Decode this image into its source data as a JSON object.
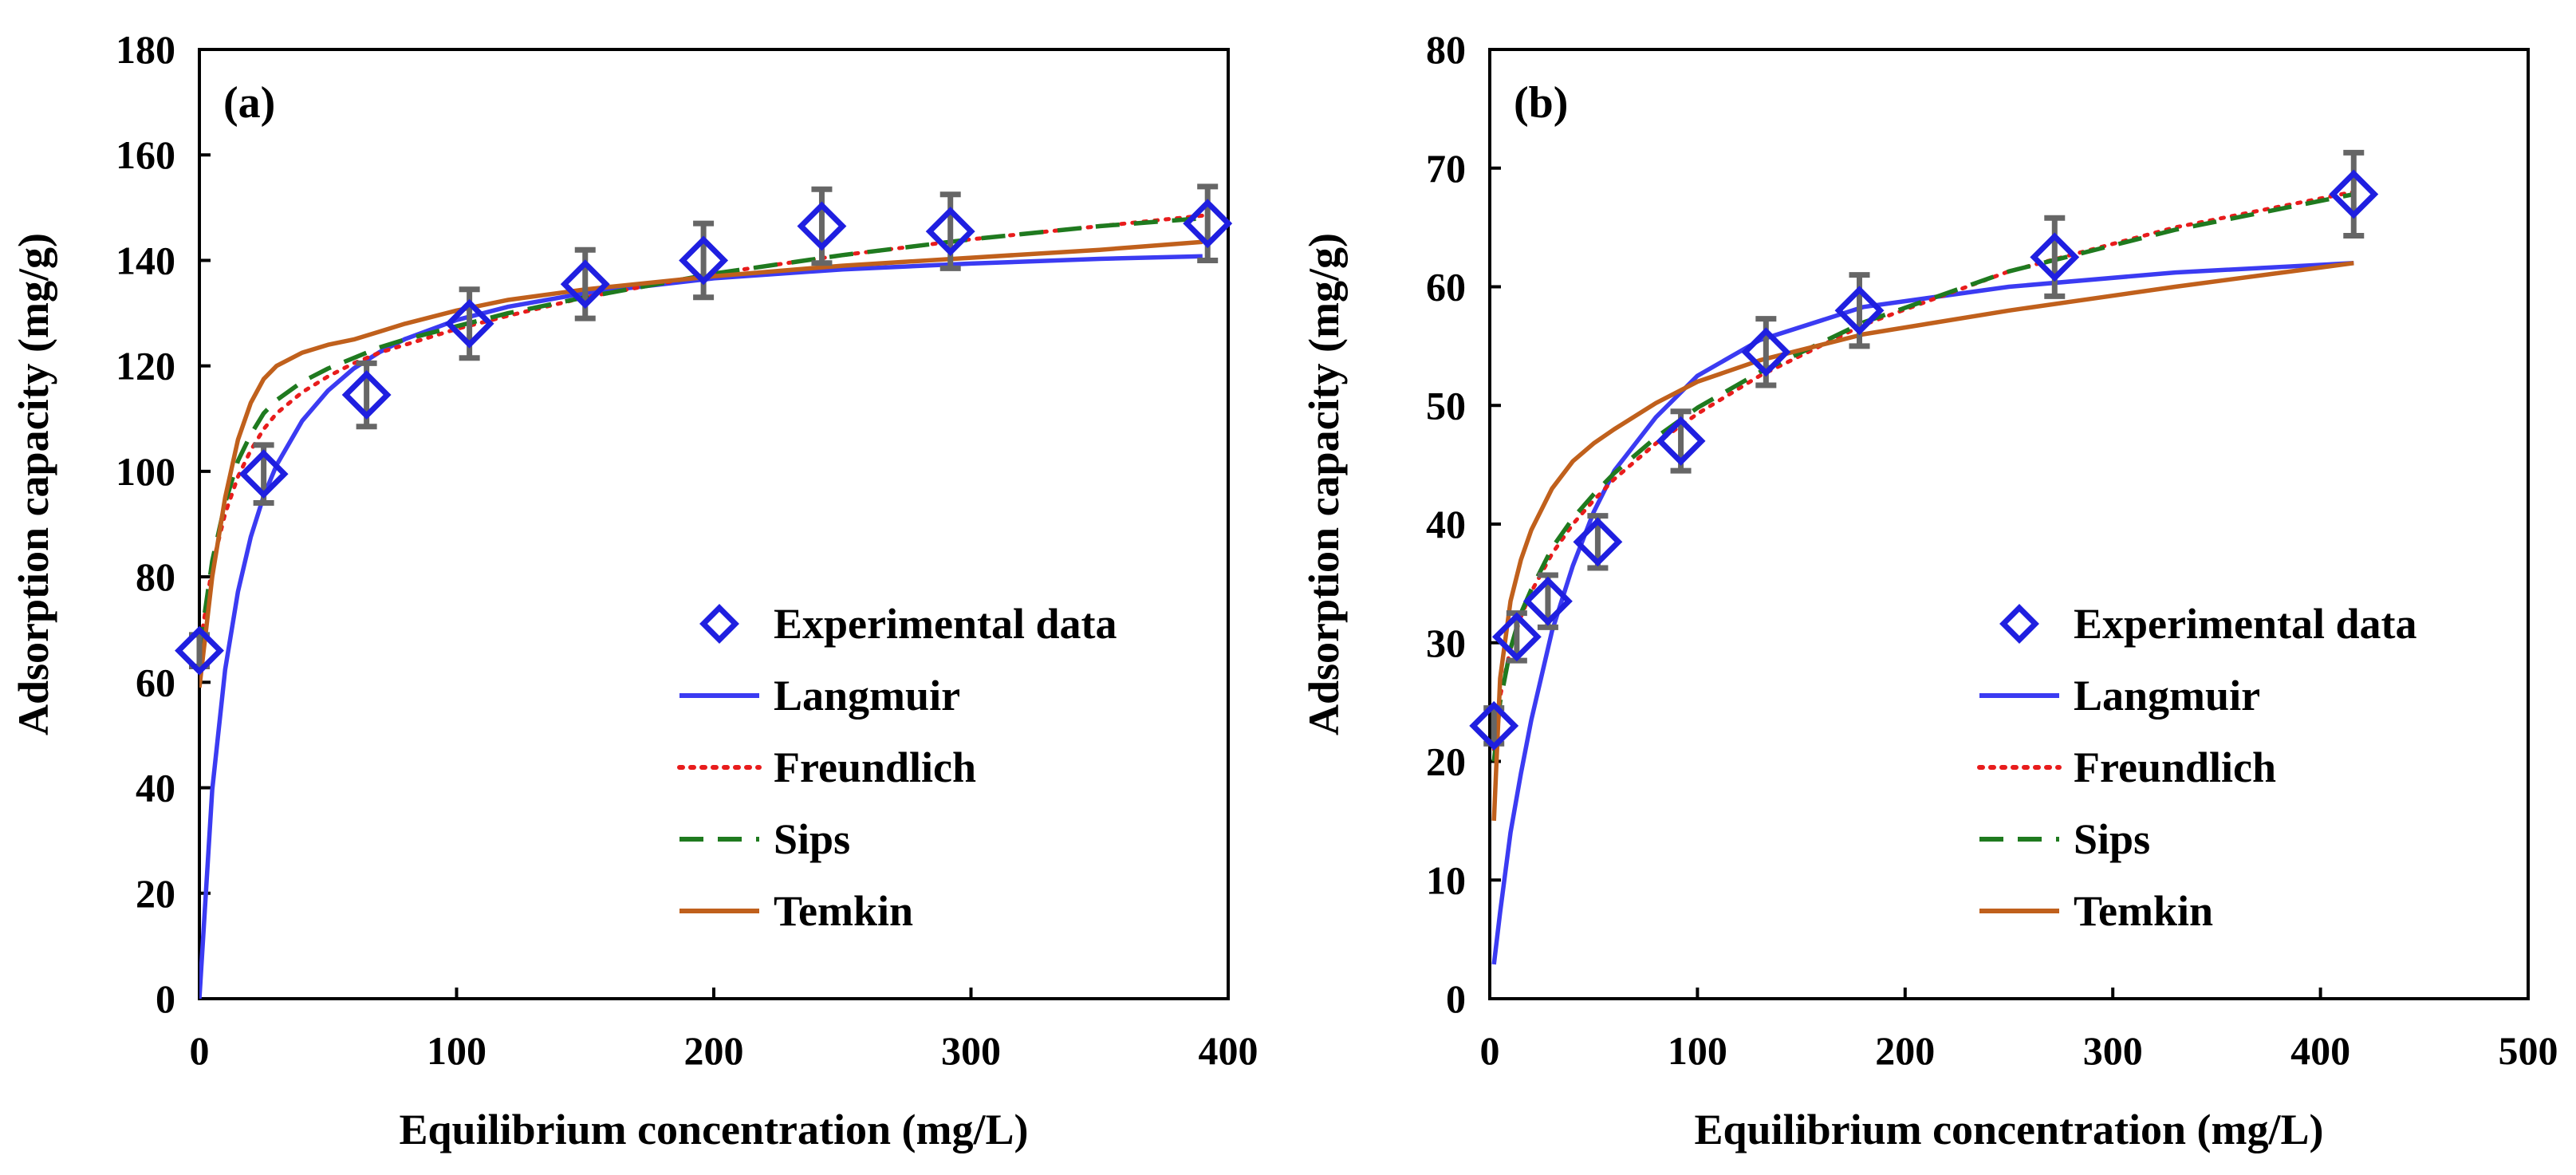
{
  "chart_data": [
    {
      "type": "scatter",
      "panel_label": "(a)",
      "xlabel": "Equilibrium concentration (mg/L)",
      "ylabel": "Adsorption capacity (mg/g)",
      "xlim": [
        0,
        400
      ],
      "ylim": [
        0,
        180
      ],
      "xticks": [
        0,
        100,
        200,
        300,
        400
      ],
      "yticks": [
        0,
        20,
        40,
        60,
        80,
        100,
        120,
        140,
        160,
        180
      ],
      "grid": false,
      "legend_position": "lower-right",
      "experimental": {
        "name": "Experimental data",
        "color": "#1f1fe0",
        "errorbar_color": "#666666",
        "x": [
          0,
          25,
          65,
          105,
          150,
          196,
          242,
          292,
          392
        ],
        "y": [
          66,
          99.5,
          114.5,
          128,
          135.5,
          140,
          146.5,
          145.5,
          147
        ],
        "err": [
          3,
          5.5,
          6,
          6.5,
          6.5,
          7,
          7,
          7,
          7
        ]
      },
      "series": [
        {
          "name": "Langmuir",
          "style": "solid",
          "color": "#3b3bf2",
          "x": [
            0,
            5,
            10,
            15,
            20,
            25,
            30,
            40,
            50,
            60,
            70,
            80,
            100,
            120,
            150,
            200,
            250,
            300,
            350,
            390
          ],
          "y": [
            0,
            39.6,
            62.4,
            77.2,
            87.6,
            95.3,
            101.2,
            109.6,
            115.3,
            119.5,
            122.6,
            125.1,
            128.7,
            131.2,
            133.8,
            136.6,
            138.3,
            139.4,
            140.3,
            140.8
          ]
        },
        {
          "name": "Freundlich",
          "style": "dotted",
          "color": "#e81c1c",
          "x": [
            0,
            5,
            10,
            15,
            20,
            25,
            30,
            40,
            50,
            60,
            70,
            80,
            100,
            120,
            150,
            200,
            250,
            300,
            350,
            390
          ],
          "y": [
            66,
            82,
            92,
            99,
            104,
            108,
            111,
            115,
            118,
            120.5,
            122.5,
            124,
            127,
            129.5,
            133,
            137.5,
            141,
            144,
            146.5,
            148.5
          ]
        },
        {
          "name": "Sips",
          "style": "dashed",
          "color": "#1f7a1f",
          "x": [
            0,
            5,
            10,
            15,
            20,
            25,
            30,
            40,
            50,
            60,
            70,
            80,
            100,
            120,
            150,
            200,
            250,
            300,
            350,
            390
          ],
          "y": [
            66,
            83,
            94,
            102,
            107,
            111,
            113.5,
            117,
            119.5,
            121.5,
            123.5,
            125,
            127.5,
            130,
            133,
            137.5,
            141,
            144,
            146.5,
            148
          ]
        },
        {
          "name": "Temkin",
          "style": "solid",
          "color": "#c0601c",
          "x": [
            0,
            5,
            10,
            15,
            20,
            25,
            30,
            40,
            50,
            60,
            70,
            80,
            100,
            120,
            150,
            200,
            250,
            300,
            350,
            390
          ],
          "y": [
            59,
            80,
            95,
            106,
            113,
            117.5,
            120,
            122.5,
            124,
            125,
            126.5,
            128,
            130.5,
            132.5,
            134.5,
            137,
            139,
            140.5,
            142,
            143.5
          ]
        }
      ]
    },
    {
      "type": "scatter",
      "panel_label": "(b)",
      "xlabel": "Equilibrium concentration (mg/L)",
      "ylabel": "Adsorption capacity (mg/g)",
      "xlim": [
        0,
        500
      ],
      "ylim": [
        0,
        80
      ],
      "xticks": [
        0,
        100,
        200,
        300,
        400,
        500
      ],
      "yticks": [
        0,
        10,
        20,
        30,
        40,
        50,
        60,
        70,
        80
      ],
      "grid": false,
      "legend_position": "lower-right",
      "experimental": {
        "name": "Experimental data",
        "color": "#1f1fe0",
        "errorbar_color": "#666666",
        "x": [
          2,
          13,
          28,
          52,
          92,
          133,
          178,
          272,
          416
        ],
        "y": [
          23,
          30.5,
          33.5,
          38.5,
          47,
          54.5,
          58,
          62.5,
          67.8
        ],
        "err": [
          1.5,
          2,
          2.2,
          2.2,
          2.5,
          2.8,
          3,
          3.3,
          3.5
        ]
      },
      "series": [
        {
          "name": "Langmuir",
          "style": "solid",
          "color": "#3b3bf2",
          "x": [
            2,
            5,
            10,
            15,
            20,
            30,
            40,
            50,
            60,
            80,
            100,
            130,
            180,
            250,
            330,
            416
          ],
          "y": [
            2.9,
            7.3,
            14,
            19,
            23.5,
            31,
            36.5,
            41,
            44.5,
            49,
            52.5,
            55.5,
            58.3,
            60,
            61.2,
            62
          ]
        },
        {
          "name": "Freundlich",
          "style": "dotted",
          "color": "#e81c1c",
          "x": [
            2,
            5,
            10,
            15,
            20,
            30,
            40,
            50,
            60,
            80,
            100,
            130,
            180,
            250,
            330,
            416
          ],
          "y": [
            21,
            25.5,
            29.5,
            32.2,
            34.3,
            37.5,
            40,
            42,
            43.8,
            46.8,
            49.3,
            52.5,
            56.8,
            61.3,
            65,
            68
          ]
        },
        {
          "name": "Sips",
          "style": "dashed",
          "color": "#1f7a1f",
          "x": [
            2,
            5,
            10,
            15,
            20,
            30,
            40,
            50,
            60,
            80,
            100,
            130,
            180,
            250,
            330,
            416
          ],
          "y": [
            20,
            25,
            29.5,
            32.5,
            34.5,
            38,
            40.5,
            42.5,
            44.3,
            47.3,
            49.8,
            52.8,
            57,
            61.3,
            64.8,
            67.8
          ]
        },
        {
          "name": "Temkin",
          "style": "solid",
          "color": "#c0601c",
          "x": [
            2,
            5,
            10,
            15,
            20,
            30,
            40,
            50,
            60,
            80,
            100,
            130,
            180,
            250,
            330,
            416
          ],
          "y": [
            15,
            27,
            33.5,
            37,
            39.5,
            43,
            45.3,
            46.8,
            48,
            50.2,
            52,
            53.8,
            56,
            58,
            60,
            62
          ]
        }
      ]
    }
  ]
}
